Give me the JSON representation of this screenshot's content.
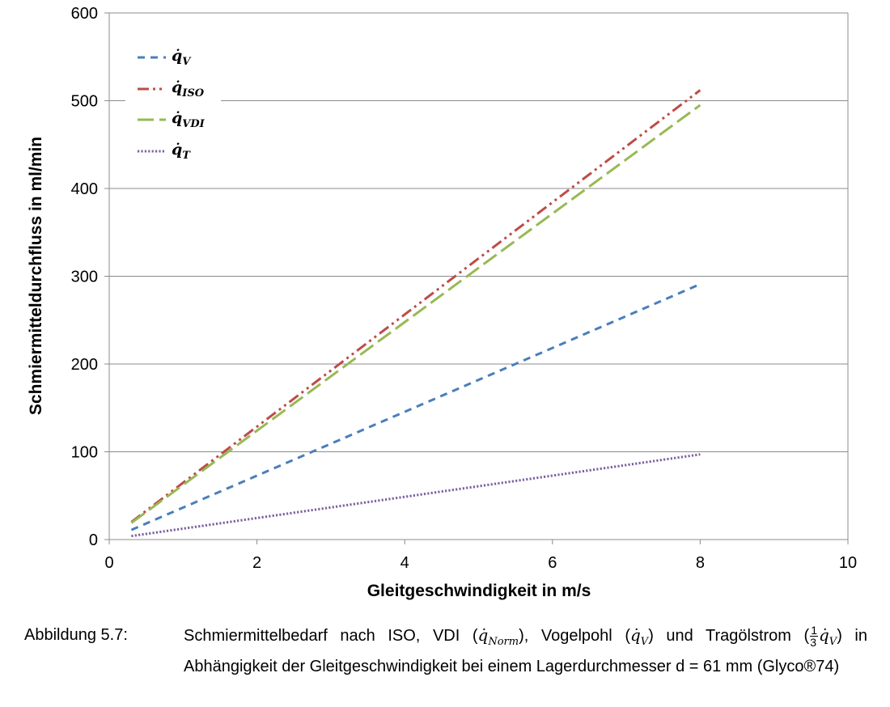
{
  "chart_data": {
    "type": "line",
    "xlabel": "Gleitgeschwindigkeit in m/s",
    "ylabel": "Schmiermitteldurchfluss in ml/min",
    "xlim": [
      0,
      10
    ],
    "ylim": [
      0,
      600
    ],
    "xticks": [
      "0",
      "2",
      "4",
      "6",
      "8",
      "10"
    ],
    "yticks": [
      "0",
      "100",
      "200",
      "300",
      "400",
      "500",
      "600"
    ],
    "grid": "horizontal",
    "legend_position": "top-left",
    "series": [
      {
        "name": "q̇V",
        "legend_main": "q̇",
        "legend_sub": "V",
        "color": "#4a7ebb",
        "dash": "dash",
        "x": [
          0.3,
          8.0
        ],
        "y": [
          11,
          291
        ]
      },
      {
        "name": "q̇ISO",
        "legend_main": "q̇",
        "legend_sub": "ISO",
        "color": "#be4b48",
        "dash": "dash-dot-dot",
        "x": [
          0.3,
          8.0
        ],
        "y": [
          20,
          512
        ]
      },
      {
        "name": "q̇VDI",
        "legend_main": "q̇",
        "legend_sub": "VDI",
        "color": "#98b954",
        "dash": "long-dash",
        "x": [
          0.3,
          8.0
        ],
        "y": [
          19,
          495
        ]
      },
      {
        "name": "q̇T",
        "legend_main": "q̇",
        "legend_sub": "T",
        "color": "#7d60a0",
        "dash": "dot",
        "x": [
          0.3,
          8.0
        ],
        "y": [
          4,
          97
        ]
      }
    ]
  },
  "caption": {
    "label": "Abbildung 5.7:",
    "part1": "Schmiermittelbedarf nach ISO, VDI (",
    "m1_main": "q̇",
    "m1_sub": "Norm",
    "part2": "), Vogelpohl (",
    "m2_main": "q̇",
    "m2_sub": "V",
    "part3": ") und Tragölstrom (",
    "frac_num": "1",
    "frac_den": "3",
    "m3_main": "q̇",
    "m3_sub": "V",
    "part4": ") in Abhängigkeit der Gleitgeschwindigkeit bei einem Lagerdurchmesser d = 61 mm (Glyco®74)"
  }
}
